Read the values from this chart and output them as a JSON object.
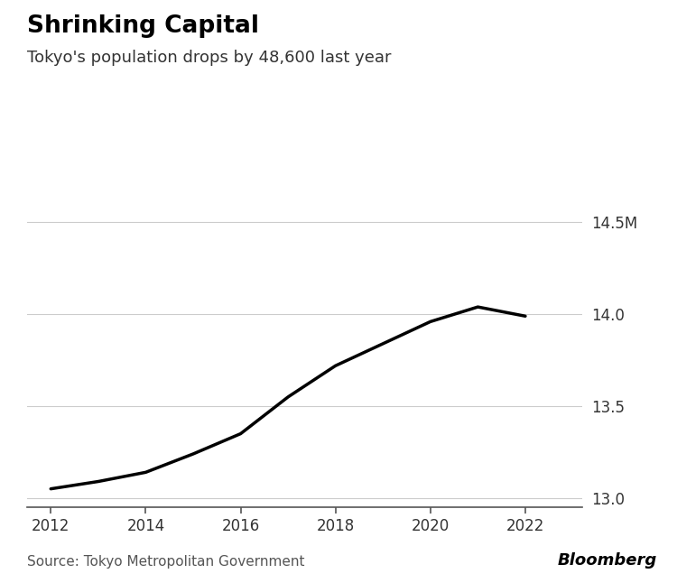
{
  "title": "Shrinking Capital",
  "subtitle": "Tokyo's population drops by 48,600 last year",
  "source": "Source: Tokyo Metropolitan Government",
  "branding": "Bloomberg",
  "years": [
    2012,
    2013,
    2014,
    2015,
    2016,
    2017,
    2018,
    2019,
    2020,
    2021,
    2022
  ],
  "population": [
    13.05,
    13.09,
    13.14,
    13.24,
    13.35,
    13.55,
    13.72,
    13.84,
    13.96,
    14.04,
    13.99
  ],
  "ylim": [
    12.95,
    14.6
  ],
  "yticks": [
    13.0,
    13.5,
    14.0,
    14.5
  ],
  "ytick_labels": [
    "13.0",
    "13.5",
    "14.0",
    "14.5M"
  ],
  "xlim": [
    2011.5,
    2023.2
  ],
  "xticks": [
    2012,
    2014,
    2016,
    2018,
    2020,
    2022
  ],
  "line_color": "#000000",
  "line_width": 2.5,
  "bg_color": "#ffffff",
  "grid_color": "#cccccc",
  "title_fontsize": 19,
  "subtitle_fontsize": 13,
  "tick_fontsize": 12,
  "source_fontsize": 11,
  "brand_fontsize": 13
}
